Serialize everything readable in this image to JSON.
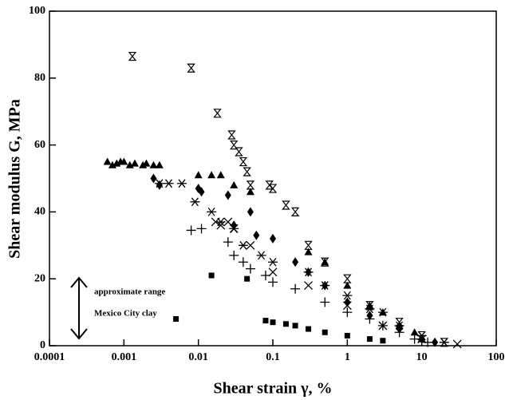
{
  "chart_data": {
    "type": "scatter",
    "xlabel": "Shear strain  γ, %",
    "ylabel": "Shear modulus G, MPa",
    "annotations": [
      "approximate range",
      "Mexico City clay"
    ],
    "xscale": "log",
    "xlim": [
      0.0001,
      100
    ],
    "xticks": [
      0.0001,
      0.001,
      0.01,
      0.1,
      1,
      10,
      100
    ],
    "ylim": [
      0,
      100
    ],
    "yticks": [
      0,
      20,
      40,
      60,
      80,
      100
    ],
    "series": [
      {
        "marker": "triangle",
        "color": "#000000",
        "x": [
          0.0006,
          0.0007,
          0.0008,
          0.0009,
          0.001,
          0.0012,
          0.0014,
          0.0018,
          0.002,
          0.0025,
          0.003,
          0.01,
          0.015,
          0.02,
          0.03,
          0.05,
          0.3,
          0.5,
          1,
          2,
          3,
          5,
          8,
          10
        ],
        "values": [
          55,
          54,
          54.5,
          55,
          55,
          54,
          54.5,
          54,
          54.5,
          54,
          54,
          51,
          51,
          51,
          48,
          46,
          28,
          25,
          18,
          12,
          10,
          6,
          4,
          2
        ]
      },
      {
        "marker": "diamond",
        "color": "#000000",
        "x": [
          0.0025,
          0.003,
          0.01,
          0.011,
          0.025,
          0.05,
          0.03,
          0.06,
          0.1,
          0.2,
          0.3,
          0.5,
          1,
          2,
          5,
          10,
          15
        ],
        "values": [
          50,
          48,
          47,
          46,
          45,
          40,
          36,
          33,
          32,
          25,
          22,
          18,
          13,
          9,
          5,
          2,
          1
        ]
      },
      {
        "marker": "asterisk",
        "color": "#000000",
        "x": [
          0.003,
          0.004,
          0.006,
          0.009,
          0.015,
          0.02,
          0.03,
          0.04,
          0.07,
          0.1,
          0.3,
          0.5,
          1,
          2,
          3,
          5,
          10,
          20
        ],
        "values": [
          48.5,
          48.5,
          48.5,
          43,
          40,
          37,
          35,
          30,
          27,
          25,
          22,
          18,
          15,
          11,
          10,
          6,
          3,
          1
        ]
      },
      {
        "marker": "x",
        "color": "#000000",
        "x": [
          0.017,
          0.02,
          0.025,
          0.03,
          0.05,
          0.1,
          0.3,
          1,
          3,
          10,
          30
        ],
        "values": [
          37,
          36,
          37,
          35,
          30,
          22,
          18,
          12,
          6,
          2,
          0.5
        ]
      },
      {
        "marker": "plus",
        "color": "#000000",
        "x": [
          0.008,
          0.011,
          0.025,
          0.03,
          0.04,
          0.05,
          0.08,
          0.1,
          0.2,
          0.5,
          1,
          2,
          3,
          5,
          8,
          12
        ],
        "values": [
          34.5,
          35,
          31,
          27,
          25,
          23,
          21,
          19,
          17,
          13,
          10,
          8,
          6,
          4,
          2,
          1
        ]
      },
      {
        "marker": "hourglass",
        "color": "#000000",
        "x": [
          0.0013,
          0.008,
          0.018,
          0.028,
          0.03,
          0.035,
          0.04,
          0.045,
          0.05,
          0.09,
          0.1,
          0.15,
          0.2,
          0.3,
          0.5,
          1,
          2,
          5,
          10,
          20
        ],
        "values": [
          86.5,
          83,
          69.5,
          63,
          60,
          58,
          55,
          52,
          48,
          48,
          47,
          42,
          40,
          30,
          25,
          20,
          12,
          7,
          3,
          1
        ]
      },
      {
        "marker": "square",
        "color": "#000000",
        "x": [
          0.015,
          0.045,
          0.005,
          0.08,
          0.1,
          0.15,
          0.2,
          0.3,
          0.5,
          1,
          2,
          3
        ],
        "values": [
          21,
          20,
          8,
          7.5,
          7,
          6.5,
          6,
          5,
          4,
          3,
          2,
          1.5
        ]
      }
    ]
  }
}
